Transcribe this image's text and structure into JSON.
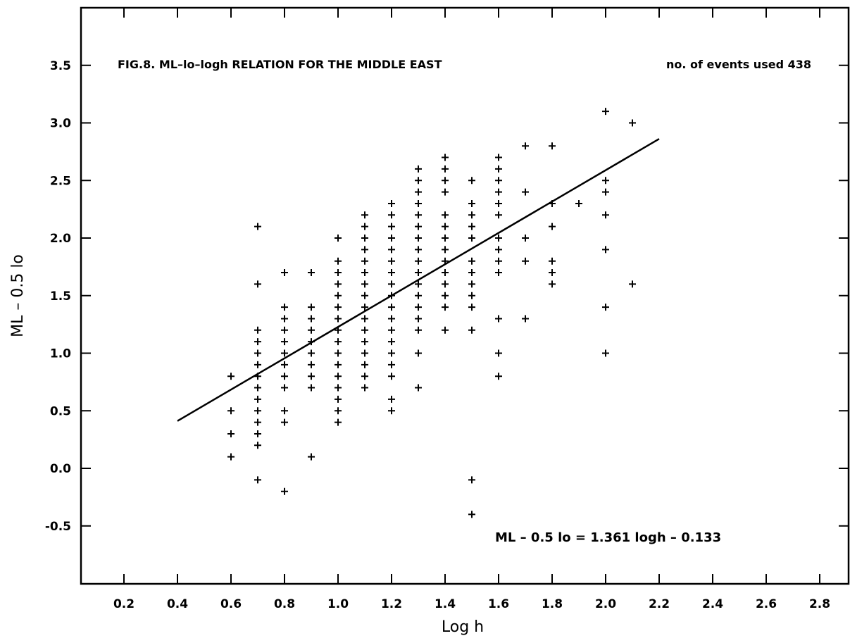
{
  "chart_data": {
    "type": "scatter",
    "title": "FIG.8. ML–lo–logh RELATION FOR THE MIDDLE EAST",
    "xlabel": "Log h",
    "ylabel": "ML – 0.5 lo",
    "xlim": [
      0.0,
      3.0
    ],
    "ylim": [
      -1.0,
      4.0
    ],
    "x_ticks": [
      0.2,
      0.4,
      0.6,
      0.8,
      1.0,
      1.2,
      1.4,
      1.6,
      1.8,
      2.0,
      2.2,
      2.4,
      2.6,
      2.8
    ],
    "x_tick_labels": [
      "0.2",
      "0.4",
      "0.6",
      "0.8",
      "1.0",
      "1.2",
      "1.4",
      "1.6",
      "1.8",
      "2.0",
      "2.2",
      "2.4",
      "2.6",
      "2.8"
    ],
    "y_ticks": [
      -0.5,
      0.0,
      0.5,
      1.0,
      1.5,
      2.0,
      2.5,
      3.0,
      3.5
    ],
    "y_tick_labels": [
      "-0.5",
      "0.0",
      "0.5",
      "1.0",
      "1.5",
      "2.0",
      "2.5",
      "3.0",
      "3.5"
    ],
    "grid": false,
    "annotations": {
      "events": "no. of events used  438",
      "equation": "ML – 0.5 lo  =  1.361 logh – 0.133"
    },
    "fit_line": {
      "slope": 1.361,
      "intercept": -0.133,
      "x_range": [
        0.4,
        2.2
      ]
    },
    "points": [
      [
        0.6,
        0.8
      ],
      [
        0.6,
        0.5
      ],
      [
        0.6,
        0.3
      ],
      [
        0.6,
        0.1
      ],
      [
        0.7,
        2.1
      ],
      [
        0.7,
        1.6
      ],
      [
        0.7,
        1.2
      ],
      [
        0.7,
        1.1
      ],
      [
        0.7,
        1.0
      ],
      [
        0.7,
        0.9
      ],
      [
        0.7,
        0.8
      ],
      [
        0.7,
        0.7
      ],
      [
        0.7,
        0.6
      ],
      [
        0.7,
        0.5
      ],
      [
        0.7,
        0.4
      ],
      [
        0.7,
        0.3
      ],
      [
        0.7,
        0.2
      ],
      [
        0.7,
        -0.1
      ],
      [
        0.8,
        1.7
      ],
      [
        0.8,
        1.4
      ],
      [
        0.8,
        1.3
      ],
      [
        0.8,
        1.2
      ],
      [
        0.8,
        1.1
      ],
      [
        0.8,
        1.0
      ],
      [
        0.8,
        0.9
      ],
      [
        0.8,
        0.8
      ],
      [
        0.8,
        0.7
      ],
      [
        0.8,
        0.5
      ],
      [
        0.8,
        0.4
      ],
      [
        0.8,
        -0.2
      ],
      [
        0.9,
        1.7
      ],
      [
        0.9,
        1.4
      ],
      [
        0.9,
        1.3
      ],
      [
        0.9,
        1.2
      ],
      [
        0.9,
        1.1
      ],
      [
        0.9,
        1.0
      ],
      [
        0.9,
        0.9
      ],
      [
        0.9,
        0.8
      ],
      [
        0.9,
        0.7
      ],
      [
        0.9,
        0.1
      ],
      [
        1.0,
        2.0
      ],
      [
        1.0,
        1.8
      ],
      [
        1.0,
        1.7
      ],
      [
        1.0,
        1.6
      ],
      [
        1.0,
        1.5
      ],
      [
        1.0,
        1.4
      ],
      [
        1.0,
        1.3
      ],
      [
        1.0,
        1.2
      ],
      [
        1.0,
        1.1
      ],
      [
        1.0,
        1.0
      ],
      [
        1.0,
        0.9
      ],
      [
        1.0,
        0.8
      ],
      [
        1.0,
        0.7
      ],
      [
        1.0,
        0.6
      ],
      [
        1.0,
        0.5
      ],
      [
        1.0,
        0.4
      ],
      [
        1.1,
        2.2
      ],
      [
        1.1,
        2.1
      ],
      [
        1.1,
        2.0
      ],
      [
        1.1,
        1.9
      ],
      [
        1.1,
        1.8
      ],
      [
        1.1,
        1.7
      ],
      [
        1.1,
        1.6
      ],
      [
        1.1,
        1.5
      ],
      [
        1.1,
        1.4
      ],
      [
        1.1,
        1.3
      ],
      [
        1.1,
        1.2
      ],
      [
        1.1,
        1.1
      ],
      [
        1.1,
        1.0
      ],
      [
        1.1,
        0.9
      ],
      [
        1.1,
        0.8
      ],
      [
        1.1,
        0.7
      ],
      [
        1.2,
        2.3
      ],
      [
        1.2,
        2.2
      ],
      [
        1.2,
        2.1
      ],
      [
        1.2,
        2.0
      ],
      [
        1.2,
        1.9
      ],
      [
        1.2,
        1.8
      ],
      [
        1.2,
        1.7
      ],
      [
        1.2,
        1.6
      ],
      [
        1.2,
        1.5
      ],
      [
        1.2,
        1.4
      ],
      [
        1.2,
        1.3
      ],
      [
        1.2,
        1.2
      ],
      [
        1.2,
        1.1
      ],
      [
        1.2,
        1.0
      ],
      [
        1.2,
        0.9
      ],
      [
        1.2,
        0.8
      ],
      [
        1.2,
        0.6
      ],
      [
        1.2,
        0.5
      ],
      [
        1.3,
        2.6
      ],
      [
        1.3,
        2.5
      ],
      [
        1.3,
        2.4
      ],
      [
        1.3,
        2.3
      ],
      [
        1.3,
        2.2
      ],
      [
        1.3,
        2.1
      ],
      [
        1.3,
        2.0
      ],
      [
        1.3,
        1.9
      ],
      [
        1.3,
        1.8
      ],
      [
        1.3,
        1.7
      ],
      [
        1.3,
        1.6
      ],
      [
        1.3,
        1.5
      ],
      [
        1.3,
        1.4
      ],
      [
        1.3,
        1.3
      ],
      [
        1.3,
        1.2
      ],
      [
        1.3,
        1.0
      ],
      [
        1.3,
        0.7
      ],
      [
        1.4,
        2.7
      ],
      [
        1.4,
        2.6
      ],
      [
        1.4,
        2.5
      ],
      [
        1.4,
        2.4
      ],
      [
        1.4,
        2.2
      ],
      [
        1.4,
        2.1
      ],
      [
        1.4,
        2.0
      ],
      [
        1.4,
        1.9
      ],
      [
        1.4,
        1.8
      ],
      [
        1.4,
        1.7
      ],
      [
        1.4,
        1.6
      ],
      [
        1.4,
        1.5
      ],
      [
        1.4,
        1.4
      ],
      [
        1.4,
        1.2
      ],
      [
        1.5,
        2.5
      ],
      [
        1.5,
        2.3
      ],
      [
        1.5,
        2.2
      ],
      [
        1.5,
        2.1
      ],
      [
        1.5,
        2.0
      ],
      [
        1.5,
        1.8
      ],
      [
        1.5,
        1.7
      ],
      [
        1.5,
        1.6
      ],
      [
        1.5,
        1.5
      ],
      [
        1.5,
        1.4
      ],
      [
        1.5,
        1.2
      ],
      [
        1.5,
        -0.1
      ],
      [
        1.5,
        -0.4
      ],
      [
        1.6,
        2.7
      ],
      [
        1.6,
        2.6
      ],
      [
        1.6,
        2.5
      ],
      [
        1.6,
        2.4
      ],
      [
        1.6,
        2.3
      ],
      [
        1.6,
        2.2
      ],
      [
        1.6,
        2.0
      ],
      [
        1.6,
        1.9
      ],
      [
        1.6,
        1.8
      ],
      [
        1.6,
        1.7
      ],
      [
        1.6,
        1.3
      ],
      [
        1.6,
        1.0
      ],
      [
        1.6,
        0.8
      ],
      [
        1.7,
        2.8
      ],
      [
        1.7,
        2.4
      ],
      [
        1.7,
        2.0
      ],
      [
        1.7,
        1.8
      ],
      [
        1.7,
        1.3
      ],
      [
        1.8,
        2.8
      ],
      [
        1.8,
        2.3
      ],
      [
        1.8,
        2.1
      ],
      [
        1.8,
        1.8
      ],
      [
        1.8,
        1.7
      ],
      [
        1.8,
        1.6
      ],
      [
        1.9,
        2.3
      ],
      [
        2.0,
        3.1
      ],
      [
        2.0,
        2.5
      ],
      [
        2.0,
        2.4
      ],
      [
        2.0,
        2.2
      ],
      [
        2.0,
        1.9
      ],
      [
        2.0,
        1.4
      ],
      [
        2.0,
        1.0
      ],
      [
        2.1,
        3.0
      ],
      [
        2.1,
        1.6
      ]
    ]
  }
}
